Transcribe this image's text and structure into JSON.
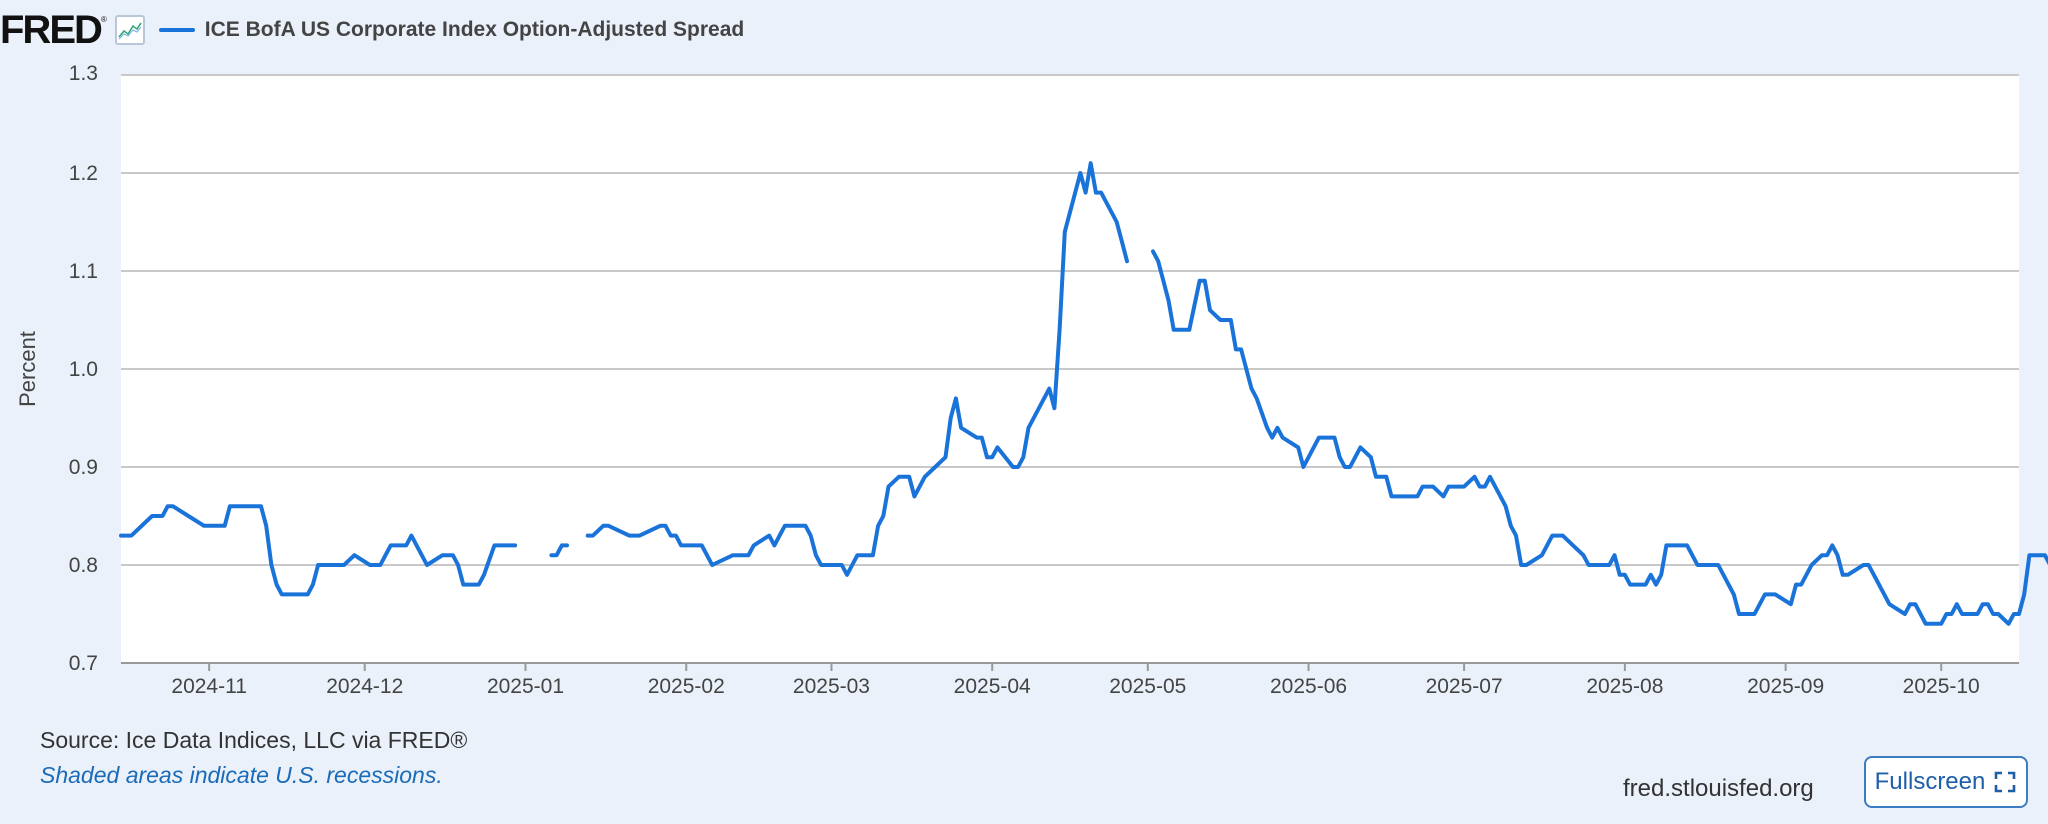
{
  "header": {
    "logo_text": "FRED",
    "logo_mark": "®",
    "graph_icon": "line-chart-icon"
  },
  "legend": {
    "label": "ICE BofA US Corporate Index Option-Adjusted Spread",
    "color": "#1a73d9"
  },
  "chart_data": {
    "type": "line",
    "title": "",
    "ylabel": "Percent",
    "xlabel": "",
    "ylim": [
      0.7,
      1.3
    ],
    "y_ticks": [
      "0.7",
      "0.8",
      "0.9",
      "1.0",
      "1.1",
      "1.2",
      "1.3"
    ],
    "x_ticks": [
      "2024-11",
      "2024-12",
      "2025-01",
      "2025-02",
      "2025-03",
      "2025-04",
      "2025-05",
      "2025-06",
      "2025-07",
      "2025-08",
      "2025-09",
      "2025-10"
    ],
    "x_range": [
      "2024-10-15",
      "2025-10-16"
    ],
    "grid": true,
    "series": [
      {
        "name": "ICE BofA US Corporate Index Option-Adjusted Spread",
        "color": "#1a73d9",
        "points": [
          [
            "2024-10-15",
            0.83
          ],
          [
            "2024-10-17",
            0.83
          ],
          [
            "2024-10-21",
            0.85
          ],
          [
            "2024-10-23",
            0.85
          ],
          [
            "2024-10-24",
            0.86
          ],
          [
            "2024-10-25",
            0.86
          ],
          [
            "2024-10-28",
            0.85
          ],
          [
            "2024-10-31",
            0.84
          ],
          [
            "2024-11-01",
            0.84
          ],
          [
            "2024-11-04",
            0.84
          ],
          [
            "2024-11-05",
            0.86
          ],
          [
            "2024-11-08",
            0.86
          ],
          [
            "2024-11-11",
            0.86
          ],
          [
            "2024-11-12",
            0.84
          ],
          [
            "2024-11-13",
            0.8
          ],
          [
            "2024-11-14",
            0.78
          ],
          [
            "2024-11-15",
            0.77
          ],
          [
            "2024-11-18",
            0.77
          ],
          [
            "2024-11-20",
            0.77
          ],
          [
            "2024-11-21",
            0.78
          ],
          [
            "2024-11-22",
            0.8
          ],
          [
            "2024-11-25",
            0.8
          ],
          [
            "2024-11-27",
            0.8
          ],
          [
            "2024-11-29",
            0.81
          ],
          [
            "2024-12-02",
            0.8
          ],
          [
            "2024-12-04",
            0.8
          ],
          [
            "2024-12-05",
            0.81
          ],
          [
            "2024-12-06",
            0.82
          ],
          [
            "2024-12-09",
            0.82
          ],
          [
            "2024-12-10",
            0.83
          ],
          [
            "2024-12-11",
            0.82
          ],
          [
            "2024-12-13",
            0.8
          ],
          [
            "2024-12-16",
            0.81
          ],
          [
            "2024-12-18",
            0.81
          ],
          [
            "2024-12-19",
            0.8
          ],
          [
            "2024-12-20",
            0.78
          ],
          [
            "2024-12-23",
            0.78
          ],
          [
            "2024-12-24",
            0.79
          ],
          [
            "2024-12-26",
            0.82
          ],
          [
            "2024-12-30",
            0.82
          ],
          null,
          [
            "2025-01-06",
            0.81
          ],
          [
            "2025-01-07",
            0.81
          ],
          [
            "2025-01-08",
            0.82
          ],
          [
            "2025-01-09",
            0.82
          ],
          null,
          [
            "2025-01-13",
            0.83
          ],
          [
            "2025-01-14",
            0.83
          ],
          [
            "2025-01-16",
            0.84
          ],
          [
            "2025-01-17",
            0.84
          ],
          [
            "2025-01-21",
            0.83
          ],
          [
            "2025-01-23",
            0.83
          ],
          [
            "2025-01-27",
            0.84
          ],
          [
            "2025-01-28",
            0.84
          ],
          [
            "2025-01-29",
            0.83
          ],
          [
            "2025-01-30",
            0.83
          ],
          [
            "2025-01-31",
            0.82
          ],
          [
            "2025-02-04",
            0.82
          ],
          [
            "2025-02-05",
            0.81
          ],
          [
            "2025-02-06",
            0.8
          ],
          [
            "2025-02-10",
            0.81
          ],
          [
            "2025-02-13",
            0.81
          ],
          [
            "2025-02-14",
            0.82
          ],
          [
            "2025-02-17",
            0.83
          ],
          [
            "2025-02-18",
            0.82
          ],
          [
            "2025-02-19",
            0.83
          ],
          [
            "2025-02-20",
            0.84
          ],
          [
            "2025-02-24",
            0.84
          ],
          [
            "2025-02-25",
            0.83
          ],
          [
            "2025-02-26",
            0.81
          ],
          [
            "2025-02-27",
            0.8
          ],
          [
            "2025-03-03",
            0.8
          ],
          [
            "2025-03-04",
            0.79
          ],
          [
            "2025-03-05",
            0.8
          ],
          [
            "2025-03-06",
            0.81
          ],
          [
            "2025-03-09",
            0.81
          ],
          [
            "2025-03-10",
            0.84
          ],
          [
            "2025-03-11",
            0.85
          ],
          [
            "2025-03-12",
            0.88
          ],
          [
            "2025-03-14",
            0.89
          ],
          [
            "2025-03-16",
            0.89
          ],
          [
            "2025-03-17",
            0.87
          ],
          [
            "2025-03-19",
            0.89
          ],
          [
            "2025-03-21",
            0.9
          ],
          [
            "2025-03-23",
            0.91
          ],
          [
            "2025-03-24",
            0.95
          ],
          [
            "2025-03-25",
            0.97
          ],
          [
            "2025-03-26",
            0.94
          ],
          [
            "2025-03-29",
            0.93
          ],
          [
            "2025-03-30",
            0.93
          ],
          [
            "2025-03-31",
            0.91
          ],
          [
            "2025-04-01",
            0.91
          ],
          [
            "2025-04-02",
            0.92
          ],
          [
            "2025-04-05",
            0.9
          ],
          [
            "2025-04-06",
            0.9
          ],
          [
            "2025-04-07",
            0.91
          ],
          [
            "2025-04-08",
            0.94
          ],
          [
            "2025-04-09",
            0.95
          ],
          [
            "2025-04-12",
            0.98
          ],
          [
            "2025-04-13",
            0.96
          ],
          [
            "2025-04-14",
            1.04
          ],
          [
            "2025-04-15",
            1.14
          ],
          [
            "2025-04-16",
            1.16
          ],
          [
            "2025-04-18",
            1.2
          ],
          [
            "2025-04-19",
            1.18
          ],
          [
            "2025-04-20",
            1.21
          ],
          [
            "2025-04-21",
            1.18
          ],
          [
            "2025-04-22",
            1.18
          ],
          [
            "2025-04-25",
            1.15
          ],
          [
            "2025-04-26",
            1.13
          ],
          [
            "2025-04-27",
            1.11
          ],
          null,
          [
            "2025-05-02",
            1.12
          ],
          [
            "2025-05-03",
            1.11
          ],
          [
            "2025-05-05",
            1.07
          ],
          [
            "2025-05-06",
            1.04
          ],
          [
            "2025-05-09",
            1.04
          ],
          [
            "2025-05-11",
            1.09
          ],
          [
            "2025-05-12",
            1.09
          ],
          [
            "2025-05-13",
            1.06
          ],
          [
            "2025-05-15",
            1.05
          ],
          [
            "2025-05-17",
            1.05
          ],
          [
            "2025-05-18",
            1.02
          ],
          [
            "2025-05-19",
            1.02
          ],
          [
            "2025-05-21",
            0.98
          ],
          [
            "2025-05-22",
            0.97
          ],
          [
            "2025-05-24",
            0.94
          ],
          [
            "2025-05-25",
            0.93
          ],
          [
            "2025-05-26",
            0.94
          ],
          [
            "2025-05-27",
            0.93
          ],
          [
            "2025-05-30",
            0.92
          ],
          [
            "2025-05-31",
            0.9
          ],
          [
            "2025-06-03",
            0.93
          ],
          [
            "2025-06-06",
            0.93
          ],
          [
            "2025-06-07",
            0.91
          ],
          [
            "2025-06-08",
            0.9
          ],
          [
            "2025-06-09",
            0.9
          ],
          [
            "2025-06-11",
            0.92
          ],
          [
            "2025-06-13",
            0.91
          ],
          [
            "2025-06-14",
            0.89
          ],
          [
            "2025-06-16",
            0.89
          ],
          [
            "2025-06-17",
            0.87
          ],
          [
            "2025-06-22",
            0.87
          ],
          [
            "2025-06-23",
            0.88
          ],
          [
            "2025-06-25",
            0.88
          ],
          [
            "2025-06-27",
            0.87
          ],
          [
            "2025-06-28",
            0.88
          ],
          [
            "2025-07-01",
            0.88
          ],
          [
            "2025-07-03",
            0.89
          ],
          [
            "2025-07-04",
            0.88
          ],
          [
            "2025-07-05",
            0.88
          ],
          [
            "2025-07-06",
            0.89
          ],
          [
            "2025-07-07",
            0.88
          ],
          [
            "2025-07-09",
            0.86
          ],
          [
            "2025-07-10",
            0.84
          ],
          [
            "2025-07-11",
            0.83
          ],
          [
            "2025-07-12",
            0.8
          ],
          [
            "2025-07-13",
            0.8
          ],
          [
            "2025-07-16",
            0.81
          ],
          [
            "2025-07-18",
            0.83
          ],
          [
            "2025-07-20",
            0.83
          ],
          [
            "2025-07-22",
            0.82
          ],
          [
            "2025-07-24",
            0.81
          ],
          [
            "2025-07-25",
            0.8
          ],
          [
            "2025-07-29",
            0.8
          ],
          [
            "2025-07-30",
            0.81
          ],
          [
            "2025-07-31",
            0.79
          ],
          [
            "2025-08-01",
            0.79
          ],
          [
            "2025-08-02",
            0.78
          ],
          [
            "2025-08-05",
            0.78
          ],
          [
            "2025-08-06",
            0.79
          ],
          [
            "2025-08-07",
            0.78
          ],
          [
            "2025-08-08",
            0.79
          ],
          [
            "2025-08-09",
            0.82
          ],
          [
            "2025-08-13",
            0.82
          ],
          [
            "2025-08-15",
            0.8
          ],
          [
            "2025-08-19",
            0.8
          ],
          [
            "2025-08-22",
            0.77
          ],
          [
            "2025-08-23",
            0.75
          ],
          [
            "2025-08-26",
            0.75
          ],
          [
            "2025-08-28",
            0.77
          ],
          [
            "2025-08-30",
            0.77
          ],
          [
            "2025-09-02",
            0.76
          ],
          [
            "2025-09-03",
            0.78
          ],
          [
            "2025-09-04",
            0.78
          ],
          [
            "2025-09-06",
            0.8
          ],
          [
            "2025-09-08",
            0.81
          ],
          [
            "2025-09-09",
            0.81
          ],
          [
            "2025-09-10",
            0.82
          ],
          [
            "2025-09-11",
            0.81
          ],
          [
            "2025-09-12",
            0.79
          ],
          [
            "2025-09-13",
            0.79
          ],
          [
            "2025-09-16",
            0.8
          ],
          [
            "2025-09-17",
            0.8
          ],
          [
            "2025-09-19",
            0.78
          ],
          [
            "2025-09-21",
            0.76
          ],
          [
            "2025-09-24",
            0.75
          ],
          [
            "2025-09-25",
            0.76
          ],
          [
            "2025-09-26",
            0.76
          ],
          [
            "2025-09-28",
            0.74
          ],
          [
            "2025-10-01",
            0.74
          ],
          [
            "2025-10-02",
            0.75
          ],
          [
            "2025-10-03",
            0.75
          ],
          [
            "2025-10-04",
            0.76
          ],
          [
            "2025-10-05",
            0.75
          ],
          [
            "2025-10-08",
            0.75
          ],
          [
            "2025-10-09",
            0.76
          ],
          [
            "2025-10-10",
            0.76
          ],
          [
            "2025-10-11",
            0.75
          ],
          [
            "2025-10-12",
            0.75
          ],
          [
            "2025-10-14",
            0.74
          ],
          [
            "2025-10-15",
            0.75
          ],
          [
            "2025-10-16",
            0.75
          ],
          [
            "2025-10-17",
            0.77
          ],
          [
            "2025-10-18",
            0.81
          ],
          [
            "2025-10-21",
            0.81
          ],
          [
            "2025-10-22",
            0.8
          ],
          [
            "2025-10-22",
            0.78
          ],
          [
            "2025-10-23",
            0.8
          ]
        ]
      }
    ]
  },
  "footer": {
    "source": "Source: Ice Data Indices, LLC via FRED®",
    "note": "Shaded areas indicate U.S. recessions.",
    "url": "fred.stlouisfed.org",
    "fullscreen_label": "Fullscreen"
  }
}
